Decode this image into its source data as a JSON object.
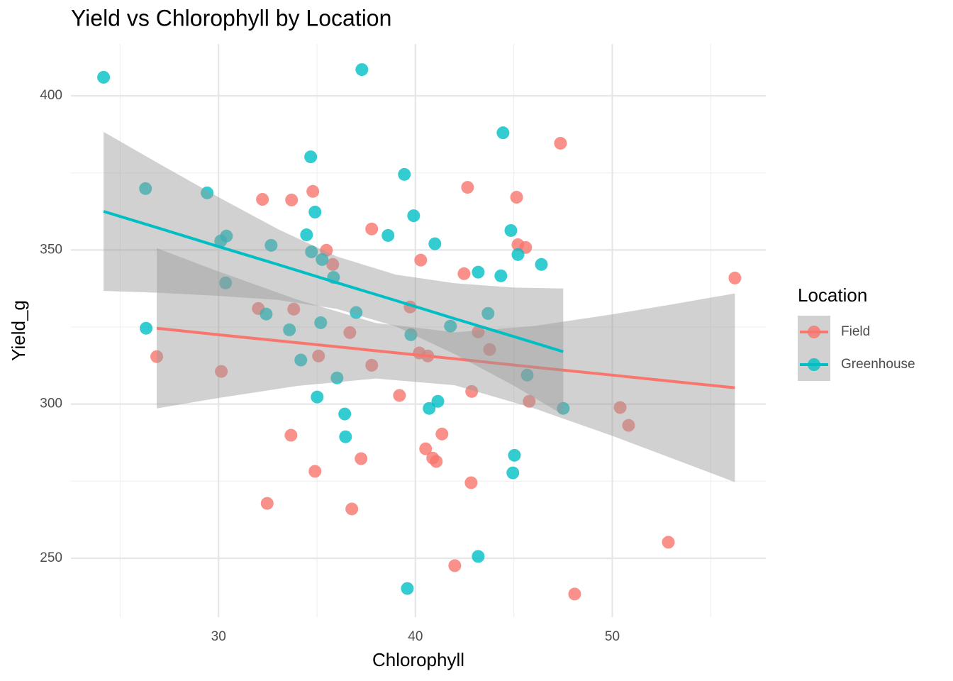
{
  "chart_data": {
    "type": "scatter",
    "title": "Yield vs Chlorophyll by Location",
    "x_label": "Chlorophyll",
    "y_label": "Yield_g",
    "legend_title": "Location",
    "xlim": [
      22.5,
      57.8
    ],
    "ylim": [
      230.9,
      416.8
    ],
    "xticks": [
      30,
      40,
      50
    ],
    "yticks": [
      250,
      300,
      350,
      400
    ],
    "x_minor_ticks": [
      25,
      35,
      45,
      55
    ],
    "y_minor_ticks": [
      275,
      325,
      375
    ],
    "grid": true,
    "legend": "right",
    "band_color": "#999999",
    "series": [
      {
        "name": "Field",
        "color": "#F8766D",
        "x": [
          26.86,
          30.14,
          32.23,
          33.71,
          34.79,
          32.02,
          33.82,
          35.48,
          35.8,
          35.08,
          36.67,
          37.78,
          37.78,
          33.68,
          34.9,
          37.24,
          32.47,
          36.77,
          39.19,
          39.73,
          40.27,
          40.2,
          40.63,
          41.35,
          40.52,
          40.88,
          41.06,
          42.0,
          42.47,
          42.65,
          43.19,
          43.77,
          42.86,
          42.83,
          45.14,
          45.21,
          45.6,
          45.78,
          47.37,
          48.09,
          50.4,
          50.83,
          52.85,
          56.23
        ],
        "values": [
          315.4,
          310.6,
          366.4,
          366.2,
          369.0,
          331.0,
          330.8,
          349.9,
          345.3,
          315.6,
          323.2,
          356.8,
          312.6,
          289.9,
          278.2,
          282.3,
          267.8,
          266.0,
          302.8,
          331.5,
          346.7,
          316.6,
          315.6,
          290.3,
          285.5,
          282.5,
          281.4,
          247.6,
          342.3,
          370.3,
          323.4,
          317.7,
          304.1,
          274.5,
          367.1,
          351.7,
          350.8,
          300.9,
          384.6,
          238.4,
          298.9,
          293.1,
          255.2,
          340.9
        ],
        "fit_x": [
          26.86,
          30,
          34,
          38,
          42,
          46,
          50,
          53,
          56.23
        ],
        "fit_y": [
          324.6,
          322.5,
          319.9,
          317.3,
          314.7,
          312.0,
          309.4,
          307.4,
          305.3
        ],
        "band_lower": [
          298.6,
          302.0,
          305.9,
          308.3,
          306.1,
          298.7,
          289.7,
          282.5,
          274.7
        ],
        "band_upper": [
          350.6,
          343.0,
          333.9,
          326.3,
          323.3,
          325.3,
          329.1,
          332.3,
          335.9
        ]
      },
      {
        "name": "Greenhouse",
        "color": "#00BFC4",
        "x": [
          24.16,
          26.29,
          29.42,
          26.32,
          30.11,
          30.4,
          30.36,
          32.67,
          32.42,
          33.6,
          34.18,
          34.47,
          34.68,
          34.9,
          34.72,
          35.26,
          35.84,
          35.19,
          35.01,
          36.02,
          36.41,
          36.45,
          36.99,
          37.28,
          38.61,
          39.44,
          39.91,
          39.77,
          39.59,
          40.99,
          40.7,
          41.14,
          41.78,
          43.19,
          43.19,
          43.69,
          44.34,
          44.45,
          44.85,
          45.21,
          45.03,
          44.95,
          46.4,
          45.68,
          47.51
        ],
        "values": [
          406.0,
          369.9,
          368.5,
          324.6,
          352.9,
          354.5,
          339.3,
          351.5,
          329.2,
          324.1,
          314.3,
          354.9,
          380.2,
          362.3,
          349.4,
          346.9,
          341.1,
          326.4,
          302.3,
          308.5,
          296.8,
          289.4,
          329.7,
          408.5,
          354.7,
          374.5,
          361.1,
          322.5,
          240.2,
          352.0,
          298.6,
          300.9,
          325.3,
          342.8,
          250.6,
          329.4,
          341.6,
          388.0,
          356.3,
          348.5,
          283.4,
          277.7,
          345.3,
          309.4,
          298.6
        ],
        "fit_x": [
          24.16,
          27,
          30,
          33,
          36,
          39,
          42,
          45,
          47.51
        ],
        "fit_y": [
          362.5,
          357.0,
          351.1,
          345.3,
          339.4,
          333.6,
          327.7,
          321.9,
          317.0
        ],
        "band_lower": [
          336.7,
          336.1,
          335.1,
          333.8,
          330.9,
          325.2,
          316.2,
          306.0,
          296.5
        ],
        "band_upper": [
          388.3,
          377.9,
          367.1,
          356.8,
          347.9,
          342.0,
          339.2,
          337.8,
          337.5
        ]
      }
    ]
  }
}
